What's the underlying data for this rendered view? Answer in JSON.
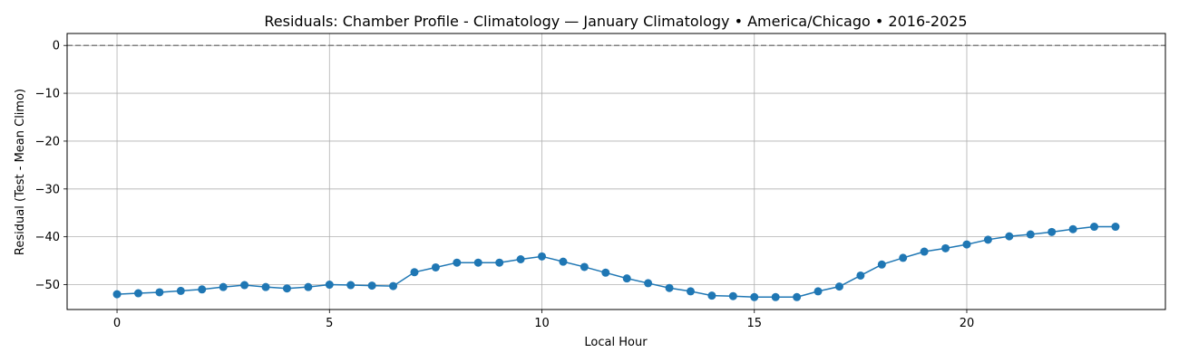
{
  "chart_data": {
    "type": "line",
    "title": "Residuals: Chamber Profile - Climatology — January Climatology • America/Chicago • 2016-2025",
    "xlabel": "Local Hour",
    "ylabel": "Residual (Test - Mean Climo)",
    "xlim": [
      -1.175,
      24.675
    ],
    "ylim": [
      -55.2,
      2.5
    ],
    "xticks": [
      0,
      5,
      10,
      15,
      20
    ],
    "yticks": [
      0,
      -10,
      -20,
      -30,
      -40,
      -50
    ],
    "xtick_labels": [
      "0",
      "5",
      "10",
      "15",
      "20"
    ],
    "ytick_labels": [
      "0",
      "−10",
      "−20",
      "−30",
      "−40",
      "−50"
    ],
    "grid": true,
    "reference_line": {
      "y": 0,
      "style": "dashed",
      "color": "#808080"
    },
    "series": [
      {
        "color": "#1f77b4",
        "marker": "circle",
        "x": [
          0,
          0.5,
          1,
          1.5,
          2,
          2.5,
          3,
          3.5,
          4,
          4.5,
          5,
          5.5,
          6,
          6.5,
          7,
          7.5,
          8,
          8.5,
          9,
          9.5,
          10,
          10.5,
          11,
          11.5,
          12,
          12.5,
          13,
          13.5,
          14,
          14.5,
          15,
          15.5,
          16,
          16.5,
          17,
          17.5,
          18,
          18.5,
          19,
          19.5,
          20,
          20.5,
          21,
          21.5,
          22,
          22.5,
          23,
          23.5
        ],
        "y": [
          -52.0,
          -51.8,
          -51.6,
          -51.3,
          -51.0,
          -50.5,
          -50.1,
          -50.5,
          -50.8,
          -50.5,
          -50.0,
          -50.1,
          -50.2,
          -50.3,
          -47.4,
          -46.4,
          -45.4,
          -45.4,
          -45.4,
          -44.7,
          -44.1,
          -45.2,
          -46.3,
          -47.5,
          -48.7,
          -49.7,
          -50.7,
          -51.4,
          -52.3,
          -52.4,
          -52.6,
          -52.6,
          -52.6,
          -51.4,
          -50.4,
          -48.1,
          -45.8,
          -44.4,
          -43.1,
          -42.4,
          -41.6,
          -40.6,
          -39.9,
          -39.5,
          -39.0,
          -38.4,
          -37.9,
          -37.9
        ]
      }
    ]
  }
}
